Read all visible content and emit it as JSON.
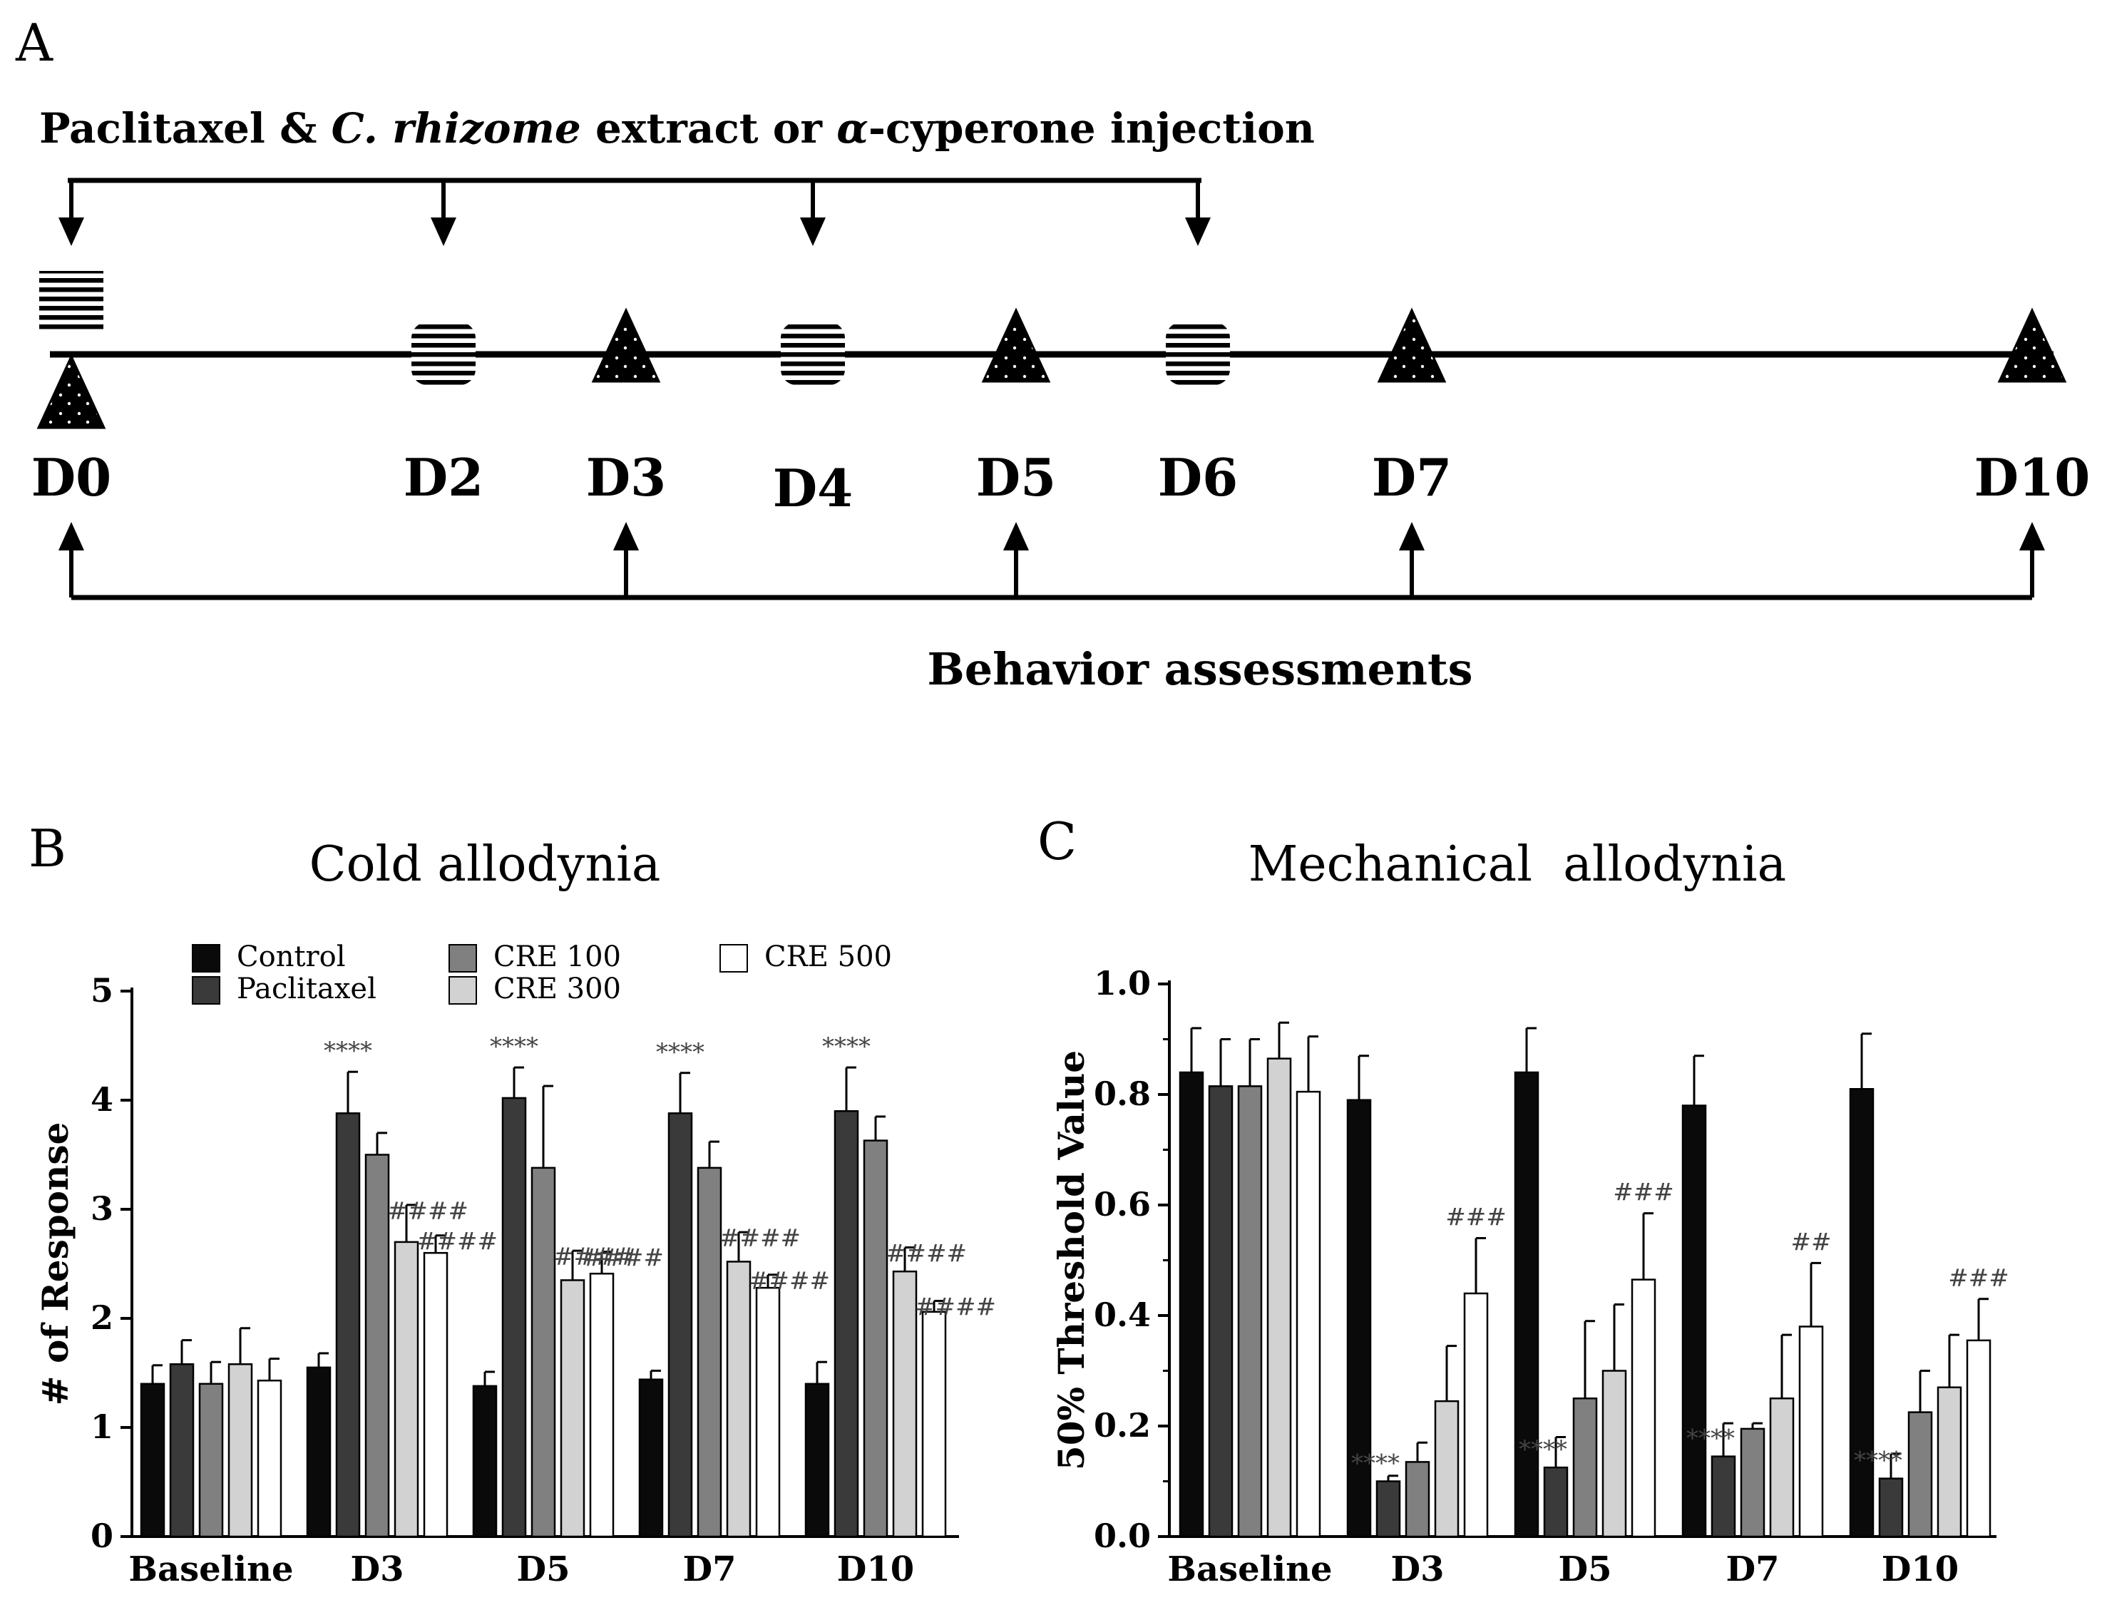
{
  "panel_a": {
    "label": "A",
    "injection_title_prefix": "Paclitaxel & ",
    "injection_title_italic": "C. rhizome",
    "injection_title_middle": " extract or ",
    "injection_title_alpha": "α",
    "injection_title_suffix": "-cyperone injection",
    "behavior_label": "Behavior assessments",
    "days": [
      "D0",
      "D2",
      "D3",
      "D4",
      "D5",
      "D6",
      "D7",
      "D10"
    ],
    "injection_days": [
      "D0",
      "D2",
      "D4",
      "D6"
    ],
    "assessment_days": [
      "D0",
      "D3",
      "D5",
      "D7",
      "D10"
    ]
  },
  "legend": {
    "entries": [
      {
        "name": "Control",
        "color": "#0a0a0a"
      },
      {
        "name": "Paclitaxel",
        "color": "#3a3a3a"
      },
      {
        "name": "CRE 100",
        "color": "#808080"
      },
      {
        "name": "CRE 300",
        "color": "#d2d2d2"
      },
      {
        "name": "CRE 500",
        "color": "#ffffff"
      }
    ]
  },
  "chart_data": [
    {
      "panel_label": "B",
      "type": "bar",
      "title": "Cold allodynia",
      "xlabel": "",
      "ylabel": "# of Response",
      "ylim": [
        0,
        5
      ],
      "yticks": [
        "0",
        "1",
        "2",
        "3",
        "4",
        "5"
      ],
      "categories": [
        "Baseline",
        "D3",
        "D5",
        "D7",
        "D10"
      ],
      "series": [
        {
          "name": "Control",
          "values": [
            1.4,
            1.55,
            1.38,
            1.44,
            1.4
          ],
          "errors": [
            0.17,
            0.13,
            0.13,
            0.08,
            0.2
          ]
        },
        {
          "name": "Paclitaxel",
          "values": [
            1.58,
            3.88,
            4.02,
            3.88,
            3.9
          ],
          "errors": [
            0.22,
            0.38,
            0.28,
            0.37,
            0.4
          ]
        },
        {
          "name": "CRE 100",
          "values": [
            1.4,
            3.5,
            3.38,
            3.38,
            3.63
          ],
          "errors": [
            0.2,
            0.2,
            0.75,
            0.24,
            0.22
          ]
        },
        {
          "name": "CRE 300",
          "values": [
            1.58,
            2.7,
            2.35,
            2.52,
            2.43
          ],
          "errors": [
            0.33,
            0.34,
            0.27,
            0.27,
            0.22
          ]
        },
        {
          "name": "CRE 500",
          "values": [
            1.43,
            2.6,
            2.41,
            2.28,
            2.06
          ],
          "errors": [
            0.2,
            0.16,
            0.2,
            0.12,
            0.1
          ]
        }
      ],
      "annotations": [
        {
          "category": "D3",
          "series": "Paclitaxel",
          "text": "****"
        },
        {
          "category": "D5",
          "series": "Paclitaxel",
          "text": "****"
        },
        {
          "category": "D7",
          "series": "Paclitaxel",
          "text": "****"
        },
        {
          "category": "D10",
          "series": "Paclitaxel",
          "text": "****"
        },
        {
          "category": "D3",
          "series": "CRE 300",
          "text": "####"
        },
        {
          "category": "D3",
          "series": "CRE 500",
          "text": "####"
        },
        {
          "category": "D5",
          "series": "CRE 300",
          "text": "####"
        },
        {
          "category": "D5",
          "series": "CRE 500",
          "text": "####"
        },
        {
          "category": "D7",
          "series": "CRE 300",
          "text": "####"
        },
        {
          "category": "D7",
          "series": "CRE 500",
          "text": "####"
        },
        {
          "category": "D10",
          "series": "CRE 300",
          "text": "####"
        },
        {
          "category": "D10",
          "series": "CRE 500",
          "text": "####"
        }
      ]
    },
    {
      "panel_label": "C",
      "type": "bar",
      "title": "Mechanical  allodynia",
      "xlabel": "",
      "ylabel": "50% Threshold Value",
      "ylim": [
        0,
        1.0
      ],
      "yticks": [
        "0.0",
        "0.2",
        "0.4",
        "0.6",
        "0.8",
        "1.0"
      ],
      "categories": [
        "Baseline",
        "D3",
        "D5",
        "D7",
        "D10"
      ],
      "series": [
        {
          "name": "Control",
          "values": [
            0.84,
            0.79,
            0.84,
            0.78,
            0.81
          ],
          "errors": [
            0.08,
            0.08,
            0.08,
            0.09,
            0.1
          ]
        },
        {
          "name": "Paclitaxel",
          "values": [
            0.815,
            0.1,
            0.125,
            0.145,
            0.105
          ],
          "errors": [
            0.085,
            0.01,
            0.055,
            0.06,
            0.045
          ]
        },
        {
          "name": "CRE 100",
          "values": [
            0.815,
            0.135,
            0.25,
            0.195,
            0.225
          ],
          "errors": [
            0.085,
            0.035,
            0.14,
            0.01,
            0.075
          ]
        },
        {
          "name": "CRE 300",
          "values": [
            0.865,
            0.245,
            0.3,
            0.25,
            0.27
          ],
          "errors": [
            0.065,
            0.1,
            0.12,
            0.115,
            0.095
          ]
        },
        {
          "name": "CRE 500",
          "values": [
            0.805,
            0.44,
            0.465,
            0.38,
            0.355
          ],
          "errors": [
            0.1,
            0.1,
            0.12,
            0.115,
            0.075
          ]
        }
      ],
      "annotations": [
        {
          "category": "D3",
          "series": "Paclitaxel",
          "text": "****"
        },
        {
          "category": "D5",
          "series": "Paclitaxel",
          "text": "****"
        },
        {
          "category": "D7",
          "series": "Paclitaxel",
          "text": "****"
        },
        {
          "category": "D10",
          "series": "Paclitaxel",
          "text": "****"
        },
        {
          "category": "D3",
          "series": "CRE 500",
          "text": "###"
        },
        {
          "category": "D5",
          "series": "CRE 500",
          "text": "###"
        },
        {
          "category": "D7",
          "series": "CRE 500",
          "text": "##"
        },
        {
          "category": "D10",
          "series": "CRE 500",
          "text": "###"
        }
      ]
    }
  ]
}
